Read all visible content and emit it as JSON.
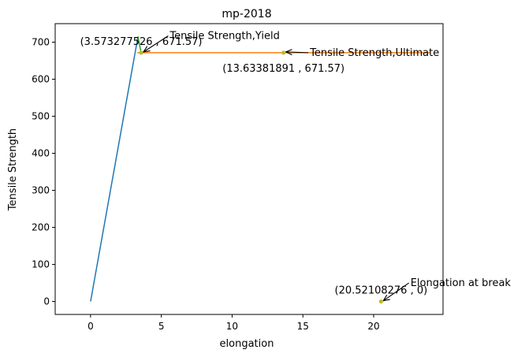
{
  "chart_data": {
    "type": "line",
    "title": "mp-2018",
    "xlabel": "elongation",
    "ylabel": "Tensile Strength",
    "xlim": [
      -2.5,
      24.9
    ],
    "ylim": [
      -35,
      750
    ],
    "xticks": [
      0,
      5,
      10,
      15,
      20
    ],
    "yticks": [
      0,
      100,
      200,
      300,
      400,
      500,
      600,
      700
    ],
    "grid": false,
    "series": [
      {
        "color": "#1f77b4",
        "x": [
          0,
          3.35
        ],
        "y": [
          0,
          715
        ]
      },
      {
        "color": "#2ca02c",
        "x": [
          3.35,
          3.57
        ],
        "y": [
          715,
          671.57
        ]
      },
      {
        "color": "#ff7f0e",
        "x": [
          3.3,
          24.0
        ],
        "y": [
          671.57,
          671.57
        ]
      }
    ],
    "points": [
      {
        "x": 3.573277526,
        "y": 671.57,
        "color": "#bcbd22"
      },
      {
        "x": 13.63381891,
        "y": 671.57,
        "color": "#bcbd22"
      },
      {
        "x": 20.52108276,
        "y": 0,
        "color": "#bcbd22"
      }
    ],
    "annotations": [
      {
        "text": "Tensile Strength,Yield",
        "x": 3.573277526,
        "y": 671.57,
        "text_x": 5.6,
        "text_y": 717
      },
      {
        "text": "Tensile Strength,Ultimate",
        "x": 13.63381891,
        "y": 671.57,
        "text_x": 15.5,
        "text_y": 671.57
      },
      {
        "text": "Elongation at break",
        "x": 20.52108276,
        "y": 0,
        "text_x": 22.6,
        "text_y": 50
      }
    ],
    "value_labels": [
      {
        "text": "(3.573277526 , 671.57)",
        "x": 3.573277526,
        "y": 671.57,
        "position": "above"
      },
      {
        "text": "(13.63381891 , 671.57)",
        "x": 13.63381891,
        "y": 671.57,
        "position": "below"
      },
      {
        "text": "(20.52108276 , 0)",
        "x": 20.52108276,
        "y": 0,
        "position": "above"
      }
    ]
  }
}
